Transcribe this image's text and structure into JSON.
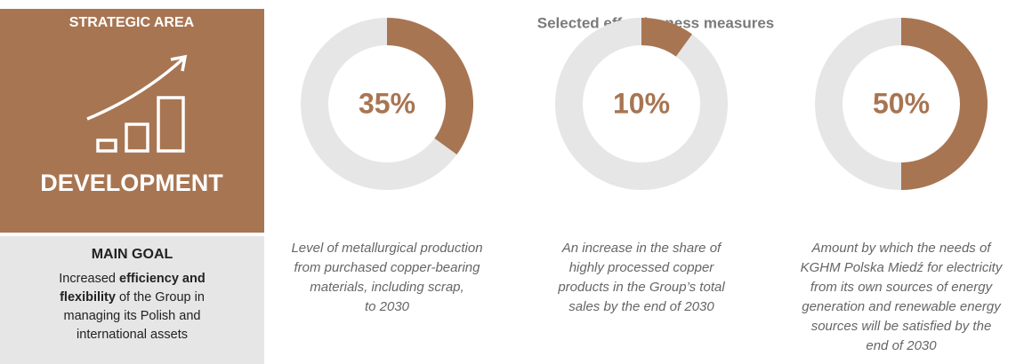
{
  "panel": {
    "label": "STRATEGIC AREA",
    "heading": "DEVELOPMENT",
    "goal_title": "MAIN GOAL",
    "goal_parts": [
      {
        "text": "Increased ",
        "bold": false
      },
      {
        "text": "efficiency and flexibility",
        "bold": true
      },
      {
        "text": " of the Group in managing its Polish and international assets",
        "bold": false
      }
    ]
  },
  "title": "Selected effectiveness measures",
  "chart_data": [
    {
      "type": "donut",
      "values": [
        35
      ],
      "value_labels": [
        "35%"
      ],
      "ylim": [
        0,
        100
      ],
      "color": "#a87552",
      "track_color": "#e6e6e6",
      "caption": [
        "Level of metallurgical production",
        "from purchased copper-bearing",
        "materials, including scrap,",
        "to 2030"
      ]
    },
    {
      "type": "donut",
      "values": [
        10
      ],
      "value_labels": [
        "10%"
      ],
      "ylim": [
        0,
        100
      ],
      "color": "#a87552",
      "track_color": "#e6e6e6",
      "caption": [
        "An increase in the share of",
        "highly processed copper",
        "products in the Group’s total",
        "sales by the end of 2030"
      ]
    },
    {
      "type": "donut",
      "values": [
        50
      ],
      "value_labels": [
        "50%"
      ],
      "ylim": [
        0,
        100
      ],
      "color": "#a87552",
      "track_color": "#e6e6e6",
      "caption": [
        "Amount by which the needs of",
        "KGHM Polska Miedź for electricity",
        "from its own sources of energy",
        "generation and renewable energy",
        "sources will be satisfied by the",
        "end of 2030"
      ]
    }
  ]
}
